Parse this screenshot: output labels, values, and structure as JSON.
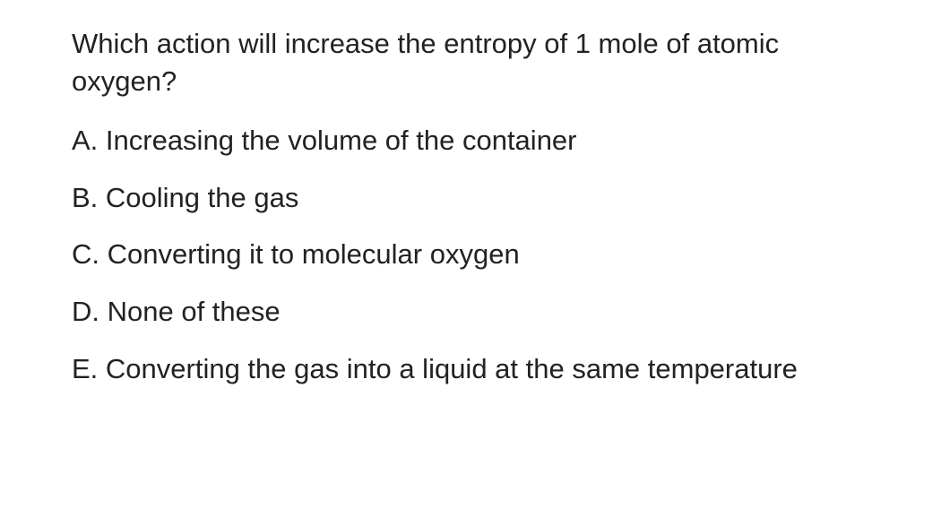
{
  "question": {
    "text": "Which action will increase the entropy of 1 mole of atomic oxygen?",
    "fontsize": 31,
    "color": "#222222"
  },
  "options": {
    "a": "A. Increasing the volume of the container",
    "b": "B. Cooling the gas",
    "c": "C. Converting it to molecular oxygen",
    "d": "D. None of these",
    "e": "E. Converting the gas into a liquid at the same temperature"
  },
  "background_color": "#ffffff"
}
